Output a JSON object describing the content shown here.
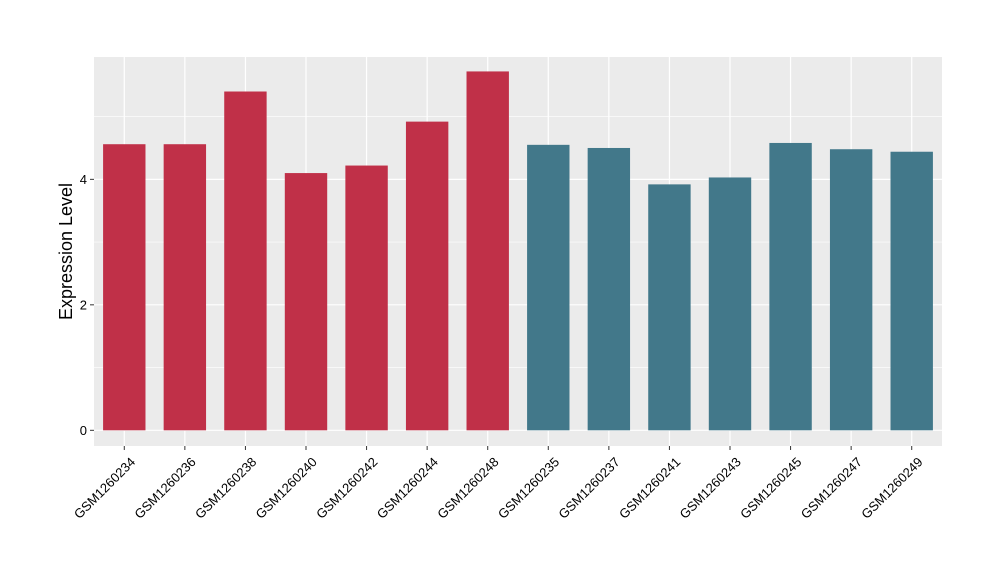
{
  "chart_data": {
    "type": "bar",
    "title": "",
    "xlabel": "",
    "ylabel": "Expression Level",
    "ylim": [
      -0.25,
      5.95
    ],
    "yticks": [
      0,
      2,
      4
    ],
    "grid": true,
    "categories": [
      "GSM1260234",
      "GSM1260236",
      "GSM1260238",
      "GSM1260240",
      "GSM1260242",
      "GSM1260244",
      "GSM1260248",
      "GSM1260235",
      "GSM1260237",
      "GSM1260241",
      "GSM1260243",
      "GSM1260245",
      "GSM1260247",
      "GSM1260249"
    ],
    "values": [
      4.56,
      4.56,
      5.4,
      4.1,
      4.22,
      4.92,
      5.72,
      4.55,
      4.5,
      3.92,
      4.03,
      4.58,
      4.48,
      4.44
    ],
    "bar_colors": [
      "#c03048",
      "#c03048",
      "#c03048",
      "#c03048",
      "#c03048",
      "#c03048",
      "#c03048",
      "#42788a",
      "#42788a",
      "#42788a",
      "#42788a",
      "#42788a",
      "#42788a",
      "#42788a"
    ]
  },
  "colors": {
    "panel_background": "#ebebeb",
    "gridline": "#ffffff",
    "axis_text": "#000000",
    "tick_mark": "#333333"
  }
}
